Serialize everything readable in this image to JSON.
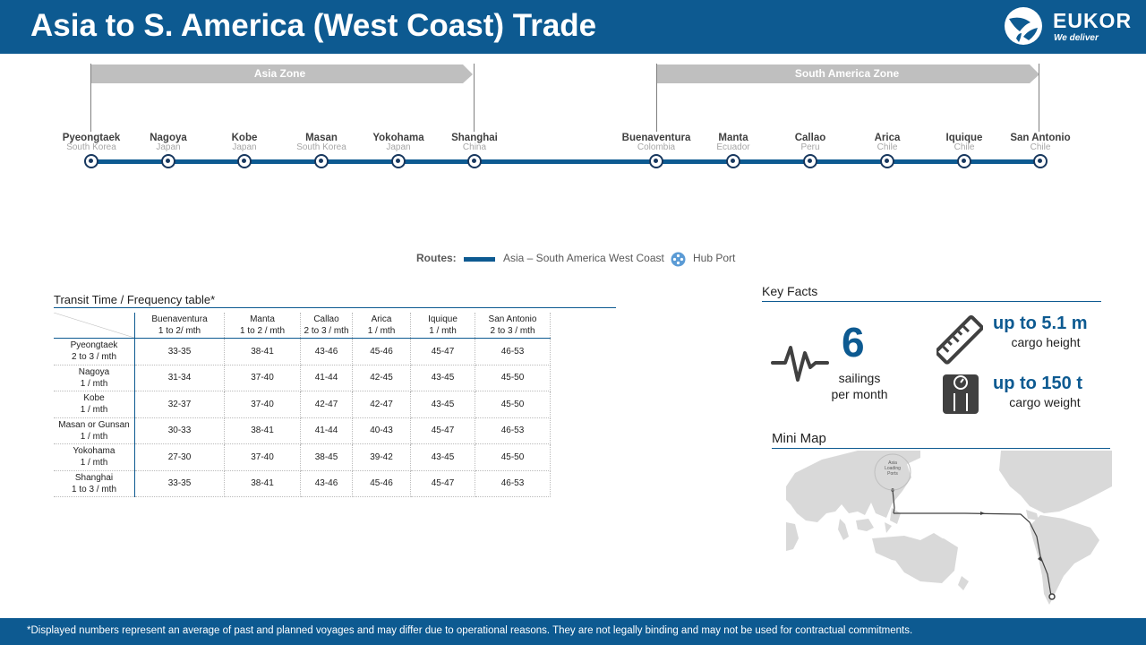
{
  "header": {
    "title": "Asia to S. America (West Coast) Trade",
    "logo_name": "EUKOR",
    "logo_tagline": "We deliver"
  },
  "zones": {
    "asia": "Asia Zone",
    "south_america": "South America Zone"
  },
  "ports": [
    {
      "name": "Pyeongtaek",
      "country": "South Korea"
    },
    {
      "name": "Nagoya",
      "country": "Japan"
    },
    {
      "name": "Kobe",
      "country": "Japan"
    },
    {
      "name": "Masan",
      "country": "South Korea"
    },
    {
      "name": "Yokohama",
      "country": "Japan"
    },
    {
      "name": "Shanghai",
      "country": "China"
    },
    {
      "name": "Buenaventura",
      "country": "Colombia"
    },
    {
      "name": "Manta",
      "country": "Ecuador"
    },
    {
      "name": "Callao",
      "country": "Peru"
    },
    {
      "name": "Arica",
      "country": "Chile"
    },
    {
      "name": "Iquique",
      "country": "Chile"
    },
    {
      "name": "San Antonio",
      "country": "Chile"
    }
  ],
  "legend": {
    "label": "Routes:",
    "route": "Asia – South America West Coast",
    "hub": "Hub Port"
  },
  "transit_table": {
    "title": "Transit Time / Frequency table*",
    "columns": [
      {
        "name": "Buenaventura",
        "freq": "1 to 2/ mth"
      },
      {
        "name": "Manta",
        "freq": "1 to 2 / mth"
      },
      {
        "name": "Callao",
        "freq": "2 to 3 / mth"
      },
      {
        "name": "Arica",
        "freq": "1 / mth"
      },
      {
        "name": "Iquique",
        "freq": "1 / mth"
      },
      {
        "name": "San Antonio",
        "freq": "2 to 3 / mth"
      }
    ],
    "rows": [
      {
        "name": "Pyeongtaek",
        "freq": "2 to 3 / mth",
        "values": [
          "33-35",
          "38-41",
          "43-46",
          "45-46",
          "45-47",
          "46-53"
        ]
      },
      {
        "name": "Nagoya",
        "freq": "1 / mth",
        "values": [
          "31-34",
          "37-40",
          "41-44",
          "42-45",
          "43-45",
          "45-50"
        ]
      },
      {
        "name": "Kobe",
        "freq": "1 / mth",
        "values": [
          "32-37",
          "37-40",
          "42-47",
          "42-47",
          "43-45",
          "45-50"
        ]
      },
      {
        "name": "Masan or Gunsan",
        "freq": "1 / mth",
        "values": [
          "30-33",
          "38-41",
          "41-44",
          "40-43",
          "45-47",
          "46-53"
        ]
      },
      {
        "name": "Yokohama",
        "freq": "1 / mth",
        "values": [
          "27-30",
          "37-40",
          "38-45",
          "39-42",
          "43-45",
          "45-50"
        ]
      },
      {
        "name": "Shanghai",
        "freq": "1 to 3 / mth",
        "values": [
          "33-35",
          "38-41",
          "43-46",
          "45-46",
          "45-47",
          "46-53"
        ]
      }
    ]
  },
  "key_facts": {
    "title": "Key Facts",
    "sailings_number": "6",
    "sailings_line1": "sailings",
    "sailings_line2": "per month",
    "height_value": "up to 5.1 m",
    "height_label": "cargo height",
    "weight_value": "up to 150 t",
    "weight_label": "cargo weight"
  },
  "mini_map": {
    "title": "Mini Map",
    "label_line1": "Asia",
    "label_line2": "Loading",
    "label_line3": "Ports"
  },
  "footer": {
    "disclaimer": "*Displayed numbers represent  an average of past and planned voyages and may differ due to operational reasons. They are not legally binding and may not be used for contractual commitments."
  },
  "colors": {
    "brand_blue": "#0d5a91",
    "dark_navy": "#17375e",
    "zone_gray": "#bfbfbf"
  }
}
